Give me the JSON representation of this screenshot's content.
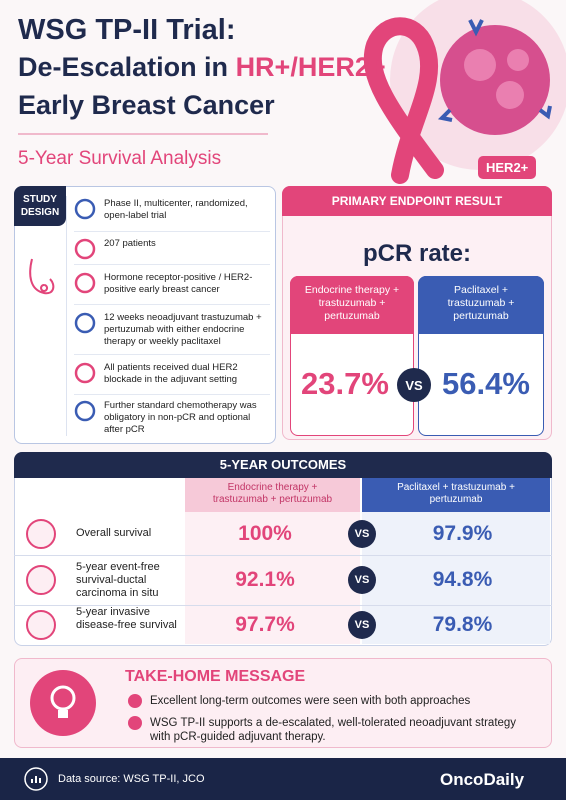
{
  "header": {
    "title_line1": "WSG TP-II Trial:",
    "title_line2_a": "De-Escalation in ",
    "title_line2_b": "HR+/HER2+",
    "title_line3": "Early Breast Cancer",
    "subtitle": "5-Year Survival Analysis",
    "badge": "HER2+"
  },
  "study_design": {
    "label_line1": "STUDY",
    "label_line2": "DESIGN",
    "items": [
      "Phase II, multicenter, randomized, open-label trial",
      "207 patients",
      "Hormone receptor-positive / HER2-positive early breast cancer",
      "12 weeks neoadjuvant trastuzumab + pertuzumab with either endocrine therapy or weekly paclitaxel",
      "All patients received dual HER2 blockade in the adjuvant setting",
      "Further standard chemotherapy was obligatory in non-pCR and optional after pCR"
    ]
  },
  "primary_endpoint": {
    "header": "PRIMARY ENDPOINT RESULT",
    "metric": "pCR rate:",
    "vs": "VS",
    "arms": [
      {
        "name": "Endocrine therapy + trastuzumab + pertuzumab",
        "value": "23.7%"
      },
      {
        "name": "Paclitaxel + trastuzumab + pertuzumab",
        "value": "56.4%"
      }
    ]
  },
  "outcomes": {
    "header": "5-YEAR OUTCOMES",
    "vs": "VS",
    "columns": [
      "Endocrine therapy + trastuzumab + pertuzumab",
      "Paclitaxel + trastuzumab + pertuzumab"
    ],
    "rows": [
      {
        "label": "Overall survival",
        "values": [
          "100%",
          "97.9%"
        ]
      },
      {
        "label": "5-year event-free survival-ductal carcinoma in situ",
        "values": [
          "92.1%",
          "94.8%"
        ]
      },
      {
        "label": "5-year invasive disease-free survival",
        "values": [
          "97.7%",
          "79.8%"
        ]
      }
    ]
  },
  "take_home": {
    "title": "TAKE-HOME MESSAGE",
    "points": [
      "Excellent long-term outcomes were seen with both approaches",
      "WSG TP-II supports a de-escalated, well-tolerated neoadjuvant strategy with pCR-guided adjuvant therapy."
    ]
  },
  "footer": {
    "source": "Data source: WSG TP-II, JCO",
    "brand": "OncoDaily"
  }
}
